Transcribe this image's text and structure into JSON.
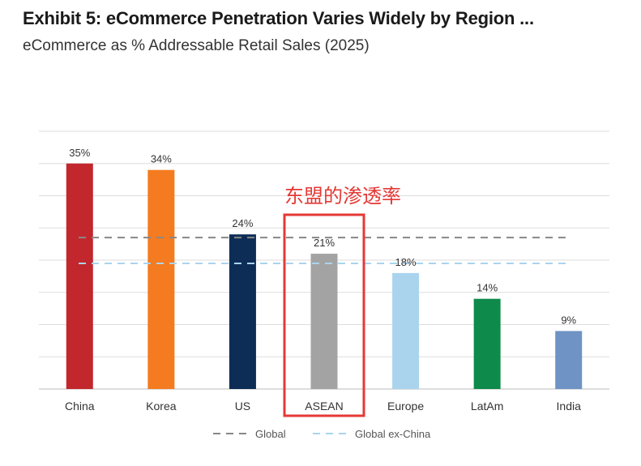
{
  "chart_data": {
    "type": "bar",
    "title": "Exhibit 5: eCommerce Penetration Varies Widely by Region ...",
    "subtitle": "eCommerce as % Addressable Retail Sales (2025)",
    "categories": [
      "China",
      "Korea",
      "US",
      "ASEAN",
      "Europe",
      "LatAm",
      "India"
    ],
    "values": [
      35,
      34,
      24,
      21,
      18,
      14,
      9
    ],
    "data_labels": [
      "35%",
      "34%",
      "24%",
      "21%",
      "18%",
      "14%",
      "9%"
    ],
    "colors": [
      "#c1272d",
      "#f47b20",
      "#0d2d56",
      "#a3a3a3",
      "#aad4ee",
      "#0e8a4a",
      "#6e93c4"
    ],
    "ylim": [
      0,
      40
    ],
    "grid": true,
    "reference_lines": [
      {
        "name": "Global",
        "value": 23.5,
        "color": "#888888",
        "style": "dashed"
      },
      {
        "name": "Global ex-China",
        "value": 19.5,
        "color": "#aad4ee",
        "style": "dashed"
      }
    ],
    "legend_position": "bottom",
    "annotation": {
      "text": "东盟的渗透率",
      "target": "ASEAN",
      "color": "#e53935"
    }
  }
}
